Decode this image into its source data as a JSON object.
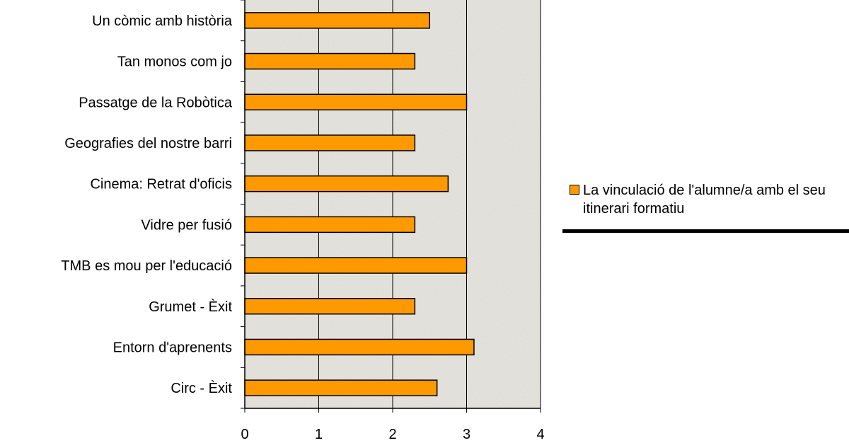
{
  "chart_data": {
    "type": "bar",
    "orientation": "horizontal",
    "categories": [
      "Un còmic amb història",
      "Tan monos com jo",
      "Passatge de la Robòtica",
      "Geografies del nostre barri",
      "Cinema: Retrat d'oficis",
      "Vidre per fusió",
      "TMB es mou per l'educació",
      "Grumet - Èxit",
      "Entorn d'aprenents",
      "Circ - Èxit"
    ],
    "series": [
      {
        "name": "La vinculació de l'alumne/a amb el seu itinerari formatiu",
        "color": "#ff9900",
        "values": [
          2.5,
          2.3,
          3.0,
          2.3,
          2.75,
          2.3,
          3.0,
          2.3,
          3.1,
          2.6
        ]
      }
    ],
    "xlim": [
      0,
      4
    ],
    "xticks": [
      "0",
      "1",
      "2",
      "3",
      "4"
    ],
    "grid": "vertical",
    "legend_position": "right"
  },
  "legend": {
    "label": "La vinculació de l'alumne/a amb el seu itinerari formatiu"
  },
  "colors": {
    "bar": "#ff9900",
    "plot_background": "#e8e6e0",
    "gridline": "#000000"
  }
}
